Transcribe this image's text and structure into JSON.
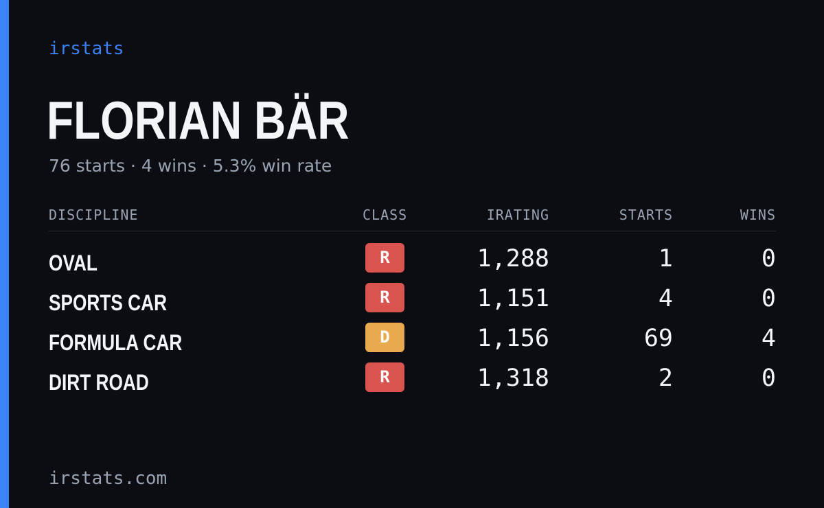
{
  "brand": "irstats",
  "player": {
    "name": "FLORIAN BÄR",
    "summary": "76 starts · 4 wins · 5.3% win rate"
  },
  "table": {
    "headers": {
      "discipline": "DISCIPLINE",
      "class": "CLASS",
      "irating": "IRATING",
      "starts": "STARTS",
      "wins": "WINS"
    },
    "rows": [
      {
        "discipline": "OVAL",
        "class": "R",
        "class_color": "#d9534f",
        "irating": "1,288",
        "starts": "1",
        "wins": "0"
      },
      {
        "discipline": "SPORTS CAR",
        "class": "R",
        "class_color": "#d9534f",
        "irating": "1,151",
        "starts": "4",
        "wins": "0"
      },
      {
        "discipline": "FORMULA CAR",
        "class": "D",
        "class_color": "#e8aa4c",
        "irating": "1,156",
        "starts": "69",
        "wins": "4"
      },
      {
        "discipline": "DIRT ROAD",
        "class": "R",
        "class_color": "#d9534f",
        "irating": "1,318",
        "starts": "2",
        "wins": "0"
      }
    ]
  },
  "footer": "irstats.com",
  "colors": {
    "background": "#0b0d13",
    "accent": "#3b82f6",
    "muted_text": "#9aa3b2",
    "class_r": "#d9534f",
    "class_d": "#e8aa4c"
  }
}
